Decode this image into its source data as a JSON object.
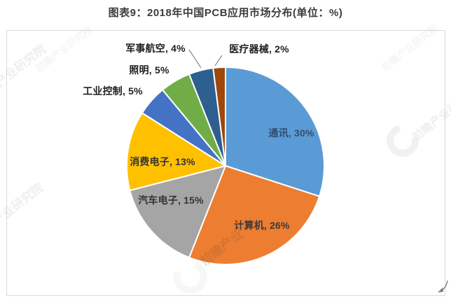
{
  "title": "图表9：2018年中国PCB应用市场分布(单位：%)",
  "chart_data": {
    "type": "pie",
    "title": "图表9：2018年中国PCB应用市场分布(单位：%)",
    "unit": "%",
    "start_angle_deg": 0,
    "direction": "clockwise",
    "legend": "none",
    "categories": [
      "通讯",
      "计算机",
      "汽车电子",
      "消费电子",
      "工业控制",
      "照明",
      "军事航空",
      "医疗器械"
    ],
    "values": [
      30,
      26,
      15,
      13,
      5,
      5,
      4,
      2
    ],
    "slices": [
      {
        "id": "communications",
        "name": "通讯",
        "value": 30,
        "label": "通讯, 30%",
        "color": "#5B9BD5",
        "label_color": "#2F4D71",
        "label_placement": "inside"
      },
      {
        "id": "computers",
        "name": "计算机",
        "value": 26,
        "label": "计算机, 26%",
        "color": "#ED7D31",
        "label_color": "#3A3A3A",
        "label_placement": "inside"
      },
      {
        "id": "automotive-electronics",
        "name": "汽车电子",
        "value": 15,
        "label": "汽车电子, 15%",
        "color": "#A5A5A5",
        "label_color": "#333333",
        "label_placement": "inside"
      },
      {
        "id": "consumer-electronics",
        "name": "消费电子",
        "value": 13,
        "label": "消费电子, 13%",
        "color": "#FFC000",
        "label_color": "#333333",
        "label_placement": "inside"
      },
      {
        "id": "industrial-control",
        "name": "工业控制",
        "value": 5,
        "label": "工业控制, 5%",
        "color": "#4472C4",
        "label_color": "#1F1F1F",
        "label_placement": "outside"
      },
      {
        "id": "lighting",
        "name": "照明",
        "value": 5,
        "label": "照明, 5%",
        "color": "#70AD47",
        "label_color": "#1F1F1F",
        "label_placement": "outside"
      },
      {
        "id": "military-aerospace",
        "name": "军事航空",
        "value": 4,
        "label": "军事航空, 4%",
        "color": "#2D5F8F",
        "label_color": "#1F1F1F",
        "label_placement": "outside"
      },
      {
        "id": "medical-devices",
        "name": "医疗器械",
        "value": 2,
        "label": "医疗器械, 2%",
        "color": "#9E480E",
        "label_color": "#1F1F1F",
        "label_placement": "outside"
      }
    ]
  },
  "watermark": {
    "brand": "前瞻产业研究院",
    "short": "前瞻产业",
    "left_text": "产业研究院"
  }
}
